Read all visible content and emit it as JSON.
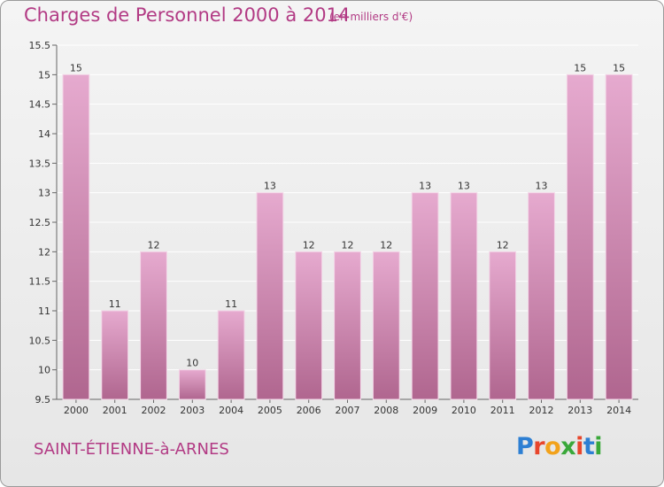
{
  "title": "Charges de Personnel 2000 à 2014",
  "subtitle": "(en milliers d'€)",
  "town": "SAINT-ÉTIENNE-à-ARNES",
  "logo": {
    "letters": [
      "P",
      "r",
      "o",
      "x",
      "i",
      "t",
      "i"
    ],
    "colors": [
      "#2d7fd3",
      "#e8462c",
      "#f2a21b",
      "#3aa83a",
      "#e8462c",
      "#2d7fd3",
      "#3aa83a"
    ]
  },
  "colors": {
    "title": "#b23a84",
    "bar_top": "#e6aacf",
    "bar_bottom": "#b0668f",
    "grid": "#ffffff"
  },
  "chart_data": {
    "type": "bar",
    "categories": [
      "2000",
      "2001",
      "2002",
      "2003",
      "2004",
      "2005",
      "2006",
      "2007",
      "2008",
      "2009",
      "2010",
      "2011",
      "2012",
      "2013",
      "2014"
    ],
    "values": [
      15,
      11,
      12,
      10,
      11,
      13,
      12,
      12,
      12,
      13,
      13,
      12,
      13,
      15,
      15
    ],
    "data_labels": [
      "15",
      "11",
      "12",
      "10",
      "11",
      "13",
      "12",
      "12",
      "12",
      "13",
      "13",
      "12",
      "13",
      "15",
      "15"
    ],
    "title": "Charges de Personnel 2000 à 2014",
    "ylim": [
      9.5,
      15.5
    ],
    "yticks": [
      9.5,
      10,
      10.5,
      11,
      11.5,
      12,
      12.5,
      13,
      13.5,
      14,
      14.5,
      15,
      15.5
    ],
    "ytick_labels": [
      "9.5",
      "10",
      "10.5",
      "11",
      "11.5",
      "12",
      "12.5",
      "13",
      "13.5",
      "14",
      "14.5",
      "15",
      "15.5"
    ],
    "grid": true
  }
}
